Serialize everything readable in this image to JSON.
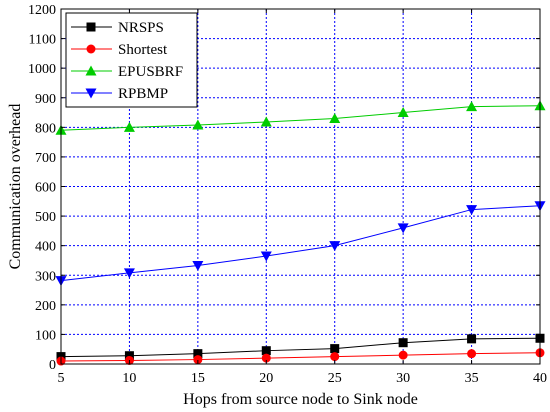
{
  "chart_data": {
    "type": "line",
    "title": "",
    "xlabel": "Hops from source node to Sink node",
    "ylabel": "Communication overhead",
    "x": [
      5,
      10,
      15,
      20,
      25,
      30,
      35,
      40
    ],
    "xlim": [
      5,
      40
    ],
    "ylim": [
      0,
      1200
    ],
    "xticks": [
      5,
      10,
      15,
      20,
      25,
      30,
      35,
      40
    ],
    "yticks": [
      0,
      100,
      200,
      300,
      400,
      500,
      600,
      700,
      800,
      900,
      1000,
      1100,
      1200
    ],
    "grid": true,
    "grid_style": "dotted",
    "grid_color": "#0000ff",
    "legend_position": "top-left",
    "series": [
      {
        "name": "NRSPS",
        "color": "#000000",
        "marker": "square",
        "values": [
          25,
          28,
          35,
          45,
          52,
          72,
          85,
          87
        ]
      },
      {
        "name": "Shortest",
        "color": "#ff0000",
        "marker": "circle",
        "values": [
          10,
          12,
          15,
          20,
          25,
          30,
          35,
          38
        ]
      },
      {
        "name": "EPUSBRF",
        "color": "#00cc00",
        "marker": "triangle-up",
        "values": [
          790,
          800,
          808,
          818,
          830,
          850,
          870,
          873
        ]
      },
      {
        "name": "RPBMP",
        "color": "#0000ff",
        "marker": "triangle-down",
        "values": [
          282,
          308,
          333,
          365,
          400,
          460,
          522,
          535
        ]
      }
    ]
  }
}
